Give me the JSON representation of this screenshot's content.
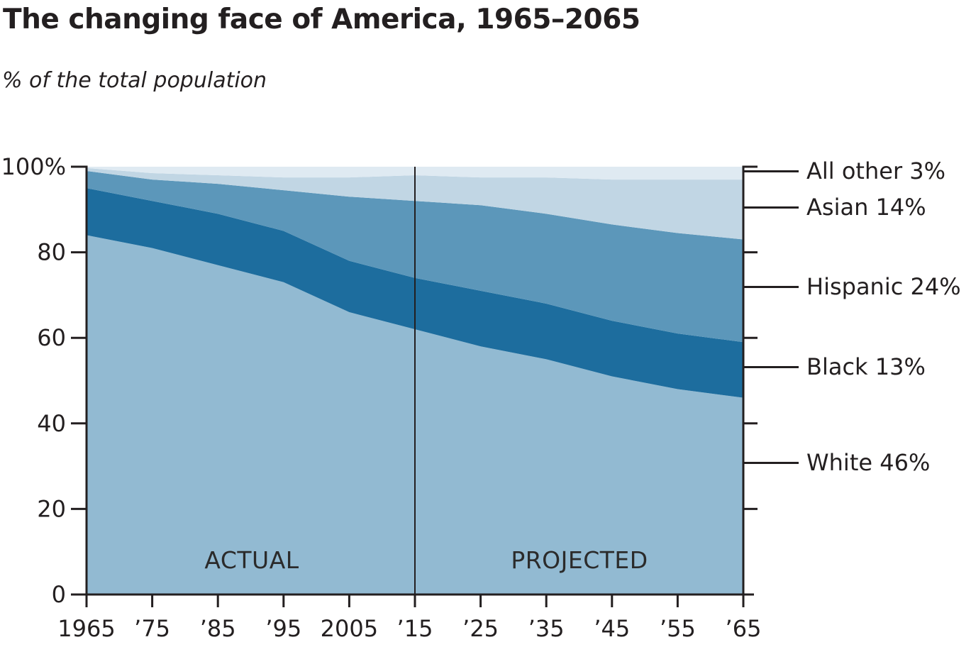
{
  "title": "The changing face of America, 1965–2065",
  "subtitle": "% of the total population",
  "annotations": {
    "actual": "ACTUAL",
    "projected": "PROJECTED"
  },
  "colors": {
    "axis": "#231f20",
    "background": "#ffffff",
    "divider": "#231f20"
  },
  "chart_data": {
    "type": "area",
    "stacked": true,
    "title": "The changing face of America, 1965–2065",
    "ylabel": "% of the total population",
    "ylim": [
      0,
      100
    ],
    "x": [
      1965,
      1975,
      1985,
      1995,
      2005,
      2015,
      2025,
      2035,
      2045,
      2055,
      2065
    ],
    "x_tick_labels": [
      "1965",
      "’75",
      "’85",
      "’95",
      "2005",
      "’15",
      "’25",
      "’35",
      "’45",
      "’55",
      "’65"
    ],
    "y_ticks": [
      0,
      20,
      40,
      60,
      80,
      100
    ],
    "y_tick_labels": [
      "0",
      "20",
      "40",
      "60",
      "80",
      "100%"
    ],
    "divider_x": 2015,
    "grid": false,
    "legend_position": "right",
    "series": [
      {
        "name": "White",
        "label": "White 46%",
        "end_value": 46,
        "color": "#92bad2",
        "values": [
          84,
          81,
          77,
          73,
          66,
          62,
          58,
          55,
          51,
          48,
          46
        ]
      },
      {
        "name": "Black",
        "label": "Black 13%",
        "end_value": 13,
        "color": "#1d6d9e",
        "values": [
          11,
          11,
          12,
          12,
          12,
          12,
          13,
          13,
          13,
          13,
          13
        ]
      },
      {
        "name": "Hispanic",
        "label": "Hispanic 24%",
        "end_value": 24,
        "color": "#5c97ba",
        "values": [
          4,
          5,
          7,
          9.5,
          15,
          18,
          20,
          21,
          22.5,
          23.5,
          24
        ]
      },
      {
        "name": "Asian",
        "label": "Asian 14%",
        "end_value": 14,
        "color": "#c1d6e4",
        "values": [
          0.7,
          1.5,
          2,
          3,
          4.5,
          6,
          6.5,
          8.5,
          10.5,
          12.5,
          14
        ]
      },
      {
        "name": "All other",
        "label": "All other 3%",
        "end_value": 3,
        "color": "#dfeaf2",
        "values": [
          0.3,
          1.5,
          2,
          2.5,
          2.5,
          2,
          2.5,
          2.5,
          3,
          3,
          3
        ]
      }
    ]
  }
}
